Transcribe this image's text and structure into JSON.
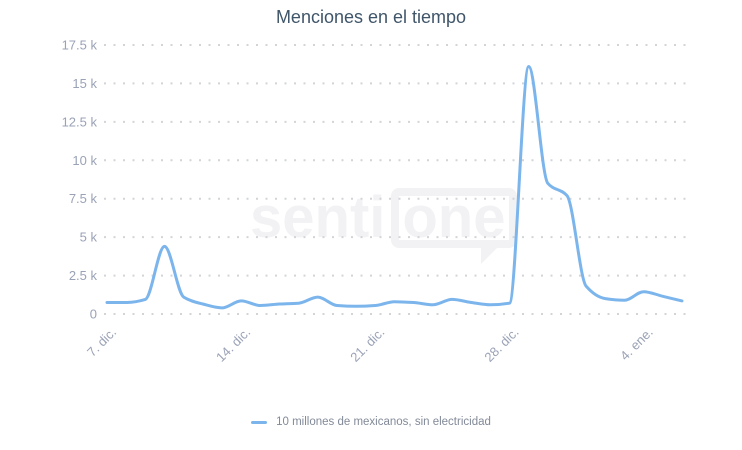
{
  "title": "Menciones en el tiempo",
  "watermark": {
    "part1": "senti",
    "part2": "one"
  },
  "colors": {
    "line": "#7cb5ec",
    "title_text": "#3f5569",
    "axis_labels": "#9aa2b6",
    "gridline": "#d2d4d8",
    "legend_text": "#828a98",
    "watermark": "#f2f2f4",
    "background": "#ffffff"
  },
  "chart_data": {
    "type": "line",
    "title": "Menciones en el tiempo",
    "x": [
      "7 dic",
      "8 dic",
      "9 dic",
      "10 dic",
      "11 dic",
      "12 dic",
      "13 dic",
      "14 dic",
      "15 dic",
      "16 dic",
      "17 dic",
      "18 dic",
      "19 dic",
      "20 dic",
      "21 dic",
      "22 dic",
      "23 dic",
      "24 dic",
      "25 dic",
      "26 dic",
      "27 dic",
      "28 dic",
      "29 dic",
      "30 dic",
      "31 dic",
      "1 ene",
      "2 ene",
      "3 ene",
      "4 ene",
      "5 ene",
      "6 ene"
    ],
    "series": [
      {
        "name": "10 millones de mexicanos, sin electricidad",
        "color": "#7cb5ec",
        "values": [
          750,
          750,
          950,
          4400,
          1100,
          650,
          400,
          850,
          550,
          650,
          700,
          1100,
          550,
          500,
          550,
          800,
          750,
          600,
          950,
          750,
          600,
          700,
          16100,
          8500,
          7700,
          1800,
          1000,
          900,
          1450,
          1150,
          850
        ]
      }
    ],
    "x_tick_labels": [
      "7. dic.",
      "14. dic.",
      "21. dic.",
      "28. dic.",
      "4. ene."
    ],
    "x_tick_indices": [
      0,
      7,
      14,
      21,
      28
    ],
    "y_tick_labels": [
      "17.5 k",
      "15 k",
      "12.5 k",
      "10 k",
      "7.5 k",
      "5 k",
      "2.5 k",
      "0"
    ],
    "y_tick_values": [
      17500,
      15000,
      12500,
      10000,
      7500,
      5000,
      2500,
      0
    ],
    "ylim": [
      0,
      17500
    ],
    "grid": "dotted-horizontal",
    "legend_position": "bottom-center",
    "smooth": true
  }
}
